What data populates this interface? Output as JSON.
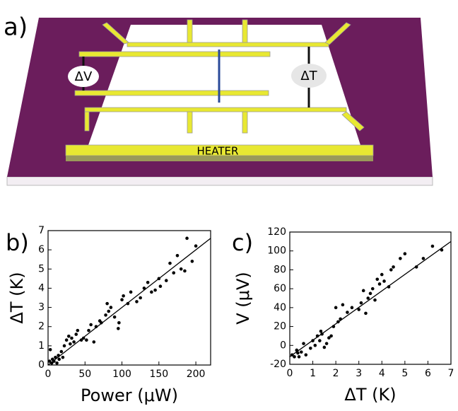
{
  "diagram": {
    "label": "a)",
    "delta_v": "ΔV",
    "delta_t": "ΔT",
    "heater": "HEATER"
  },
  "chart_data": [
    {
      "type": "scatter",
      "panel_label": "b)",
      "x_label": "Power (μW)",
      "y_label": "ΔT (K)",
      "xlim": [
        0,
        220
      ],
      "ylim": [
        0,
        7
      ],
      "xticks": [
        0,
        50,
        100,
        150,
        200
      ],
      "yticks": [
        0,
        1,
        2,
        3,
        4,
        5,
        6,
        7
      ],
      "x": [
        2,
        3,
        5,
        6,
        8,
        10,
        12,
        14,
        15,
        18,
        20,
        22,
        25,
        28,
        30,
        32,
        35,
        38,
        40,
        45,
        48,
        52,
        55,
        58,
        62,
        65,
        70,
        72,
        78,
        80,
        82,
        85,
        90,
        95,
        96,
        100,
        102,
        108,
        112,
        120,
        125,
        130,
        135,
        140,
        145,
        150,
        152,
        160,
        165,
        170,
        175,
        180,
        185,
        188,
        195,
        200
      ],
      "values": [
        0.2,
        0.8,
        0.1,
        0.3,
        0.2,
        0.4,
        0.1,
        0.5,
        0.3,
        0.7,
        0.4,
        1.0,
        1.3,
        1.5,
        1.1,
        1.4,
        1.2,
        1.6,
        1.8,
        1.3,
        1.4,
        1.3,
        1.8,
        2.1,
        1.2,
        2.0,
        2.3,
        2.2,
        2.6,
        3.2,
        2.8,
        3.0,
        2.5,
        1.9,
        2.2,
        3.4,
        3.6,
        3.2,
        3.8,
        3.3,
        3.5,
        4.0,
        4.3,
        3.8,
        3.9,
        4.5,
        4.1,
        4.4,
        5.3,
        4.8,
        5.7,
        5.0,
        4.9,
        6.6,
        5.4,
        6.2
      ],
      "fit": {
        "x": [
          0,
          220
        ],
        "values": [
          0,
          6.6
        ]
      }
    },
    {
      "type": "scatter",
      "panel_label": "c)",
      "x_label": "ΔT (K)",
      "y_label": "V (μV)",
      "xlim": [
        0,
        7
      ],
      "ylim": [
        -20,
        120
      ],
      "xticks": [
        0,
        1,
        2,
        3,
        4,
        5,
        6,
        7
      ],
      "yticks": [
        -20,
        0,
        20,
        40,
        60,
        80,
        100,
        120
      ],
      "x": [
        0.1,
        0.2,
        0.3,
        0.35,
        0.4,
        0.5,
        0.6,
        0.7,
        0.9,
        1.0,
        1.1,
        1.2,
        1.3,
        1.35,
        1.4,
        1.5,
        1.6,
        1.7,
        1.8,
        1.9,
        2.0,
        2.1,
        2.2,
        2.3,
        2.5,
        2.7,
        3.0,
        3.1,
        3.2,
        3.3,
        3.4,
        3.5,
        3.6,
        3.7,
        3.8,
        3.9,
        4.0,
        4.1,
        4.3,
        4.4,
        4.5,
        4.8,
        5.0,
        5.5,
        5.8,
        6.2,
        6.6
      ],
      "values": [
        -10,
        -12,
        -5,
        -8,
        -12,
        -7,
        2,
        -10,
        -3,
        5,
        0,
        10,
        5,
        15,
        12,
        -2,
        2,
        8,
        10,
        20,
        40,
        25,
        28,
        43,
        35,
        40,
        38,
        45,
        58,
        34,
        50,
        55,
        60,
        48,
        70,
        65,
        75,
        68,
        62,
        80,
        83,
        92,
        97,
        83,
        92,
        105,
        101
      ],
      "fit": {
        "x": [
          0,
          7
        ],
        "values": [
          -12,
          110
        ]
      }
    }
  ]
}
